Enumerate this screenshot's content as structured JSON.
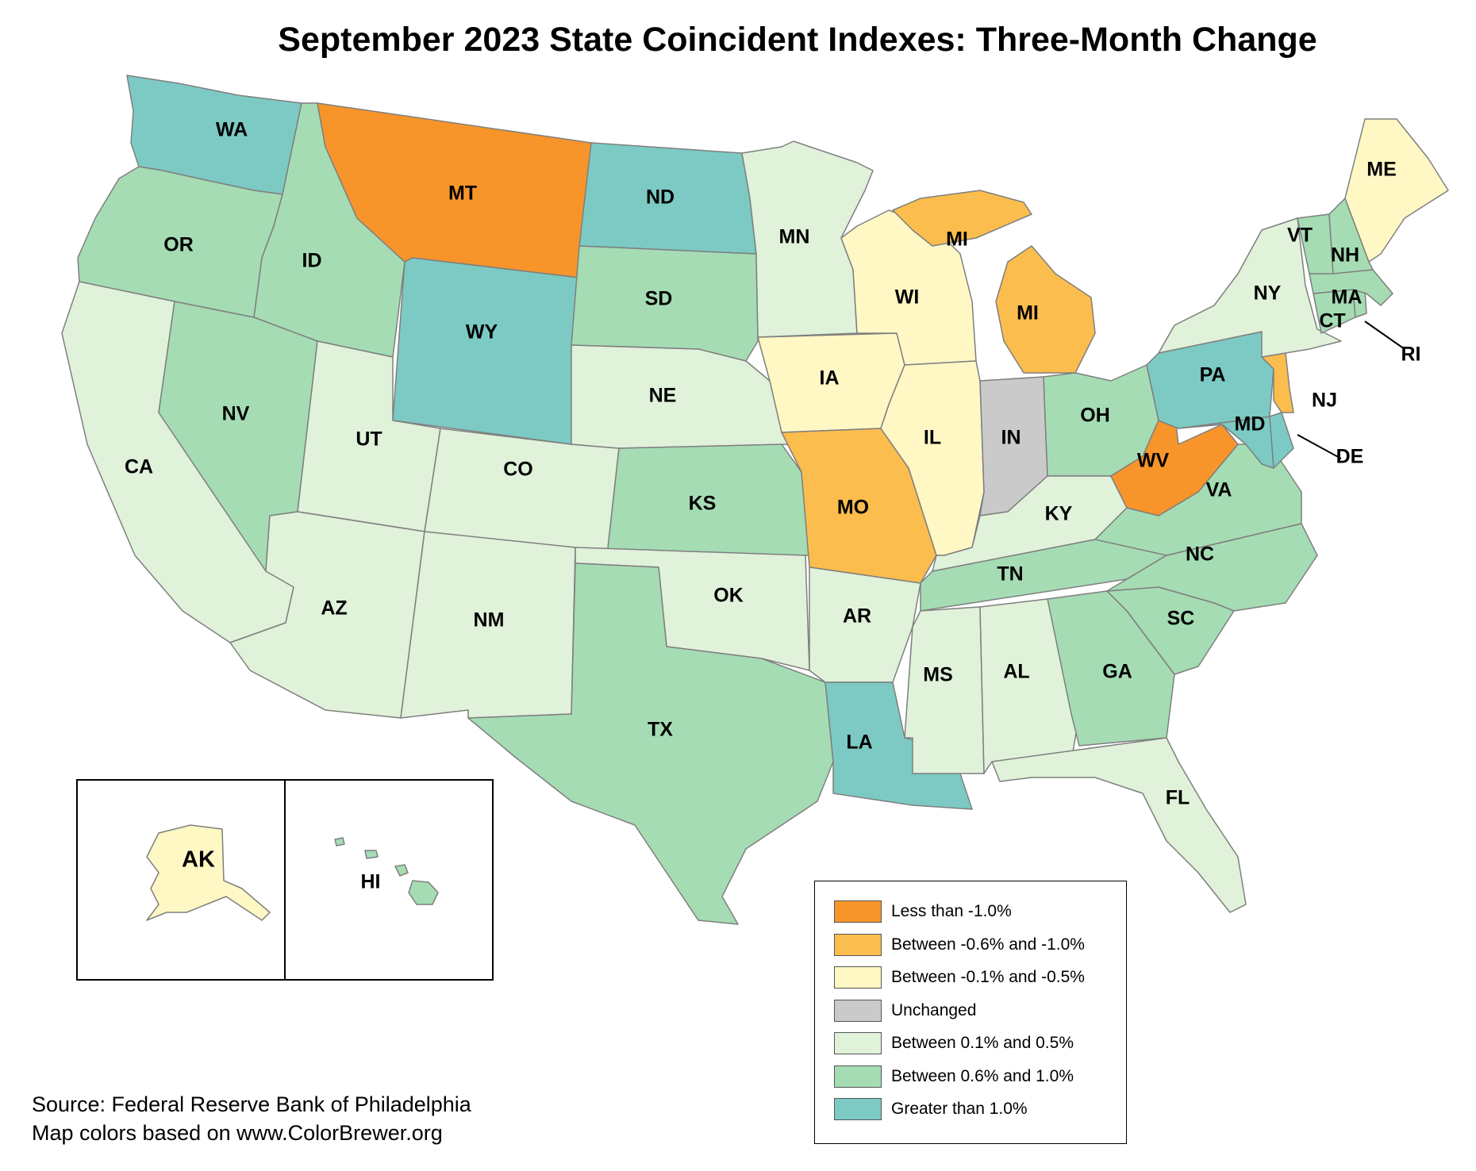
{
  "title": "September 2023 State Coincident Indexes: Three-Month Change",
  "source_lines": [
    "Source: Federal Reserve Bank of Philadelphia",
    "Map colors based on www.ColorBrewer.org"
  ],
  "categories": [
    {
      "id": "lt_neg1",
      "label": "Less than -1.0%",
      "color": "#f7952a"
    },
    {
      "id": "neg06_neg1",
      "label": "Between -0.6% and -1.0%",
      "color": "#fbbd4d"
    },
    {
      "id": "neg01_neg05",
      "label": "Between -0.1% and -0.5%",
      "color": "#fff8c4"
    },
    {
      "id": "unchanged",
      "label": "Unchanged",
      "color": "#cacaca"
    },
    {
      "id": "p01_p05",
      "label": "Between 0.1% and 0.5%",
      "color": "#e0f2da"
    },
    {
      "id": "p06_p1",
      "label": "Between 0.6% and 1.0%",
      "color": "#a5dcb4"
    },
    {
      "id": "gt1",
      "label": "Greater than 1.0%",
      "color": "#7ccac3"
    }
  ],
  "states": [
    {
      "abbr": "WA",
      "category": "gt1"
    },
    {
      "abbr": "OR",
      "category": "p06_p1"
    },
    {
      "abbr": "CA",
      "category": "p01_p05"
    },
    {
      "abbr": "ID",
      "category": "p06_p1"
    },
    {
      "abbr": "NV",
      "category": "p06_p1"
    },
    {
      "abbr": "MT",
      "category": "lt_neg1"
    },
    {
      "abbr": "WY",
      "category": "gt1"
    },
    {
      "abbr": "UT",
      "category": "p01_p05"
    },
    {
      "abbr": "AZ",
      "category": "p01_p05"
    },
    {
      "abbr": "CO",
      "category": "p01_p05"
    },
    {
      "abbr": "NM",
      "category": "p01_p05"
    },
    {
      "abbr": "ND",
      "category": "gt1"
    },
    {
      "abbr": "SD",
      "category": "p06_p1"
    },
    {
      "abbr": "NE",
      "category": "p01_p05"
    },
    {
      "abbr": "KS",
      "category": "p06_p1"
    },
    {
      "abbr": "OK",
      "category": "p01_p05"
    },
    {
      "abbr": "TX",
      "category": "p06_p1"
    },
    {
      "abbr": "MN",
      "category": "p01_p05"
    },
    {
      "abbr": "IA",
      "category": "neg01_neg05"
    },
    {
      "abbr": "MO",
      "category": "neg06_neg1"
    },
    {
      "abbr": "AR",
      "category": "p01_p05"
    },
    {
      "abbr": "LA",
      "category": "gt1"
    },
    {
      "abbr": "WI",
      "category": "neg01_neg05"
    },
    {
      "abbr": "IL",
      "category": "neg01_neg05"
    },
    {
      "abbr": "MI",
      "category": "neg06_neg1"
    },
    {
      "abbr": "IN",
      "category": "unchanged"
    },
    {
      "abbr": "OH",
      "category": "p06_p1"
    },
    {
      "abbr": "KY",
      "category": "p01_p05"
    },
    {
      "abbr": "TN",
      "category": "p06_p1"
    },
    {
      "abbr": "MS",
      "category": "p01_p05"
    },
    {
      "abbr": "AL",
      "category": "p01_p05"
    },
    {
      "abbr": "GA",
      "category": "p06_p1"
    },
    {
      "abbr": "FL",
      "category": "p01_p05"
    },
    {
      "abbr": "SC",
      "category": "p06_p1"
    },
    {
      "abbr": "NC",
      "category": "p06_p1"
    },
    {
      "abbr": "VA",
      "category": "p06_p1"
    },
    {
      "abbr": "WV",
      "category": "lt_neg1"
    },
    {
      "abbr": "PA",
      "category": "gt1"
    },
    {
      "abbr": "NY",
      "category": "p01_p05"
    },
    {
      "abbr": "NJ",
      "category": "neg06_neg1"
    },
    {
      "abbr": "DE",
      "category": "gt1"
    },
    {
      "abbr": "MD",
      "category": "gt1"
    },
    {
      "abbr": "CT",
      "category": "p06_p1"
    },
    {
      "abbr": "RI",
      "category": "p06_p1"
    },
    {
      "abbr": "MA",
      "category": "p06_p1"
    },
    {
      "abbr": "VT",
      "category": "p06_p1"
    },
    {
      "abbr": "NH",
      "category": "p06_p1"
    },
    {
      "abbr": "ME",
      "category": "neg01_neg05"
    },
    {
      "abbr": "AK",
      "category": "neg01_neg05"
    },
    {
      "abbr": "HI",
      "category": "p06_p1"
    }
  ]
}
